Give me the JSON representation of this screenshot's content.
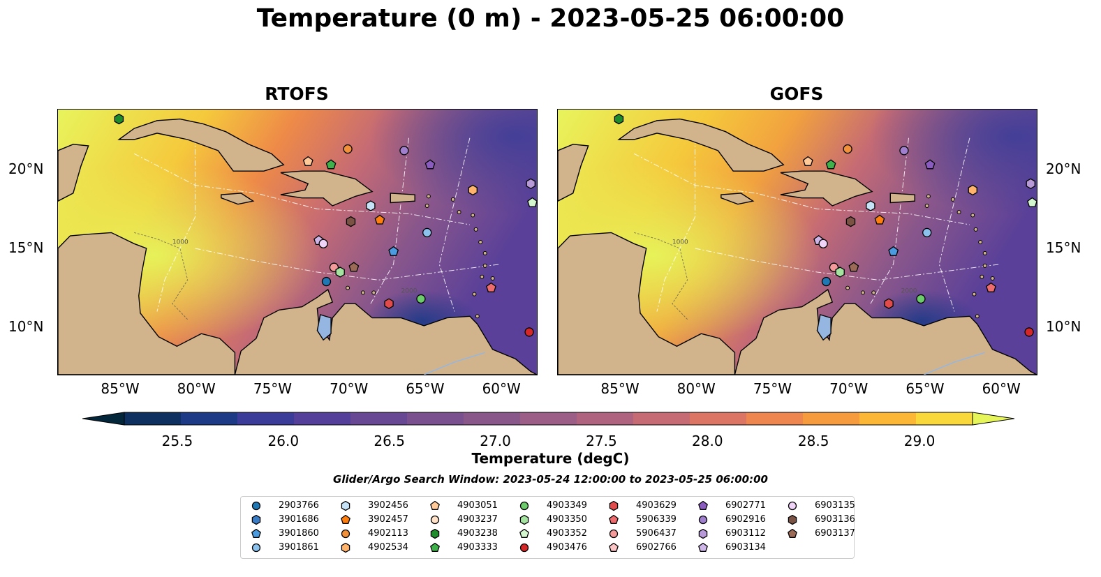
{
  "figure": {
    "title": "Temperature (0 m) - 2023-05-25 06:00:00",
    "panels": [
      {
        "title": "RTOFS"
      },
      {
        "title": "GOFS"
      }
    ],
    "lon_ticks": [
      "85°W",
      "80°W",
      "75°W",
      "70°W",
      "65°W",
      "60°W"
    ],
    "lat_ticks": [
      "20°N",
      "15°N",
      "10°N"
    ],
    "colorbar": {
      "label": "Temperature (degC)",
      "ticks": [
        "25.5",
        "26.0",
        "26.5",
        "27.0",
        "27.5",
        "28.0",
        "28.5",
        "29.0"
      ],
      "range": [
        25.25,
        29.25
      ],
      "colormap": "thermal",
      "colors": [
        "#04263a",
        "#0d3060",
        "#1d3a86",
        "#3b3c99",
        "#54409b",
        "#684895",
        "#7a508f",
        "#8a578b",
        "#9c5d86",
        "#b0637e",
        "#c66b74",
        "#dc7563",
        "#ee8650",
        "#f79c3e",
        "#fbb735",
        "#f9d83c",
        "#e6f55a"
      ]
    },
    "search_window": "Glider/Argo Search Window: 2023-05-24 12:00:00 to 2023-05-25 06:00:00",
    "contour_labels": [
      "1000",
      "2000"
    ]
  },
  "legend": [
    {
      "id": "2903766",
      "marker": "circle",
      "color": "#1f77b4"
    },
    {
      "id": "3901686",
      "marker": "hexagon",
      "color": "#3b7dc4"
    },
    {
      "id": "3901860",
      "marker": "pentagon",
      "color": "#4a9be0"
    },
    {
      "id": "3901861",
      "marker": "circle",
      "color": "#8cc2ee"
    },
    {
      "id": "3902456",
      "marker": "hexagon",
      "color": "#c6e2f7"
    },
    {
      "id": "3902457",
      "marker": "pentagon",
      "color": "#ff7f0e"
    },
    {
      "id": "4902113",
      "marker": "circle",
      "color": "#f2913a"
    },
    {
      "id": "4902534",
      "marker": "hexagon",
      "color": "#ffb36b"
    },
    {
      "id": "4903051",
      "marker": "pentagon",
      "color": "#ffc998"
    },
    {
      "id": "4903237",
      "marker": "circle",
      "color": "#ffe2c8"
    },
    {
      "id": "4903238",
      "marker": "hexagon",
      "color": "#1e8c2a"
    },
    {
      "id": "4903333",
      "marker": "pentagon",
      "color": "#3fb14a"
    },
    {
      "id": "4903349",
      "marker": "circle",
      "color": "#6ccb6a"
    },
    {
      "id": "4903350",
      "marker": "hexagon",
      "color": "#a5e3a0"
    },
    {
      "id": "4903352",
      "marker": "pentagon",
      "color": "#d4f6cf"
    },
    {
      "id": "4903476",
      "marker": "circle",
      "color": "#d62728"
    },
    {
      "id": "4903629",
      "marker": "hexagon",
      "color": "#e04b4b"
    },
    {
      "id": "5906339",
      "marker": "pentagon",
      "color": "#ee6b6e"
    },
    {
      "id": "5906437",
      "marker": "circle",
      "color": "#f59a9a"
    },
    {
      "id": "6902766",
      "marker": "pentagon",
      "color": "#fbc5c5"
    },
    {
      "id": "6902771",
      "marker": "pentagon",
      "color": "#8a5cc0"
    },
    {
      "id": "6902916",
      "marker": "circle",
      "color": "#a07fcf"
    },
    {
      "id": "6903112",
      "marker": "hexagon",
      "color": "#b99ad9"
    },
    {
      "id": "6903134",
      "marker": "pentagon",
      "color": "#cfb6e8"
    },
    {
      "id": "6903135",
      "marker": "circle",
      "color": "#efd4f8"
    },
    {
      "id": "6903136",
      "marker": "hexagon",
      "color": "#7b5344"
    },
    {
      "id": "6903137",
      "marker": "pentagon",
      "color": "#9c6b58"
    }
  ],
  "observations": [
    {
      "id": "4903238",
      "lon": -85.0,
      "lat": 23.2
    },
    {
      "id": "4902113",
      "lon": -70.0,
      "lat": 21.3
    },
    {
      "id": "4903051",
      "lon": -72.6,
      "lat": 20.5
    },
    {
      "id": "4903333",
      "lon": -71.1,
      "lat": 20.3
    },
    {
      "id": "6902916",
      "lon": -66.3,
      "lat": 21.2
    },
    {
      "id": "6902771",
      "lon": -64.6,
      "lat": 20.3
    },
    {
      "id": "6903112",
      "lon": -58.0,
      "lat": 19.1
    },
    {
      "id": "4903352",
      "lon": -57.9,
      "lat": 17.9
    },
    {
      "id": "4902534",
      "lon": -61.8,
      "lat": 18.7
    },
    {
      "id": "3902456",
      "lon": -68.5,
      "lat": 17.7
    },
    {
      "id": "3902457",
      "lon": -67.9,
      "lat": 16.8
    },
    {
      "id": "6903136",
      "lon": -69.8,
      "lat": 16.7
    },
    {
      "id": "3901861",
      "lon": -64.8,
      "lat": 16.0
    },
    {
      "id": "6903134",
      "lon": -71.9,
      "lat": 15.5
    },
    {
      "id": "6903135",
      "lon": -71.6,
      "lat": 15.3
    },
    {
      "id": "3901860",
      "lon": -67.0,
      "lat": 14.8
    },
    {
      "id": "6903137",
      "lon": -69.6,
      "lat": 13.8
    },
    {
      "id": "5906437",
      "lon": -70.9,
      "lat": 13.8
    },
    {
      "id": "4903350",
      "lon": -70.5,
      "lat": 13.5
    },
    {
      "id": "2903766",
      "lon": -71.4,
      "lat": 12.9
    },
    {
      "id": "5906339",
      "lon": -60.6,
      "lat": 12.5
    },
    {
      "id": "4903349",
      "lon": -65.2,
      "lat": 11.8
    },
    {
      "id": "4903629",
      "lon": -67.3,
      "lat": 11.5
    },
    {
      "id": "4903476",
      "lon": -58.1,
      "lat": 9.7
    }
  ]
}
